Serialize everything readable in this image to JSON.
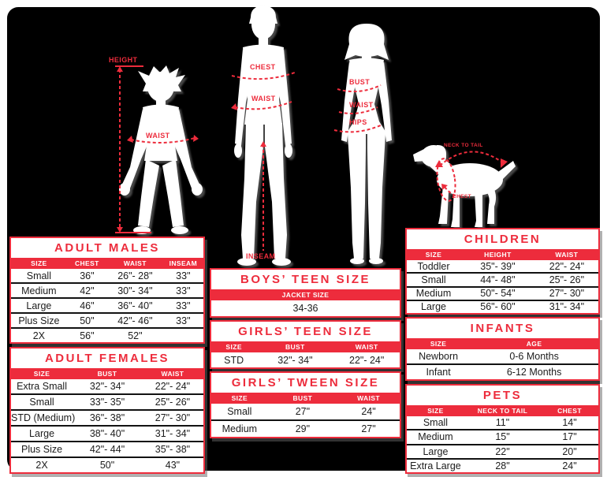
{
  "colors": {
    "accent_red": "#ed2c3c",
    "panel_black": "#000000",
    "table_bg": "#ffffff"
  },
  "figures": {
    "child": {
      "labels": {
        "height": "HEIGHT",
        "waist": "WAIST"
      }
    },
    "man": {
      "labels": {
        "chest": "CHEST",
        "waist": "WAIST",
        "inseam": "INSEAM"
      }
    },
    "woman": {
      "labels": {
        "bust": "BUST",
        "waist": "WAIST",
        "hips": "HIPS"
      }
    },
    "dog": {
      "labels": {
        "neck_to_tail": "NECK TO TAIL",
        "chest": "CHEST"
      }
    }
  },
  "tables": [
    {
      "id": "adult-males",
      "title": "ADULT MALES",
      "columns": [
        "SIZE",
        "CHEST",
        "WAIST",
        "INSEAM"
      ],
      "rows": [
        [
          "Small",
          "36\"",
          "26\"- 28\"",
          "33\""
        ],
        [
          "Medium",
          "42\"",
          "30\"- 34\"",
          "33\""
        ],
        [
          "Large",
          "46\"",
          "36\"- 40\"",
          "33\""
        ],
        [
          "Plus Size",
          "50\"",
          "42\"- 46\"",
          "33\""
        ],
        [
          "2X",
          "56\"",
          "52\"",
          ""
        ]
      ]
    },
    {
      "id": "adult-females",
      "title": "ADULT FEMALES",
      "columns": [
        "SIZE",
        "BUST",
        "WAIST"
      ],
      "rows": [
        [
          "Extra Small",
          "32\"- 34\"",
          "22\"- 24\""
        ],
        [
          "Small",
          "33\"- 35\"",
          "25\"- 26\""
        ],
        [
          "STD (Medium)",
          "36\"- 38\"",
          "27\"- 30\""
        ],
        [
          "Large",
          "38\"- 40\"",
          "31\"- 34\""
        ],
        [
          "Plus Size",
          "42\"- 44\"",
          "35\"- 38\""
        ],
        [
          "2X",
          "50\"",
          "43\""
        ]
      ]
    },
    {
      "id": "boys-teen",
      "title": "BOYS’ TEEN SIZE",
      "columns": [
        "JACKET SIZE"
      ],
      "rows": [
        [
          "34-36"
        ]
      ]
    },
    {
      "id": "girls-teen",
      "title": "GIRLS’ TEEN SIZE",
      "columns": [
        "SIZE",
        "BUST",
        "WAIST"
      ],
      "rows": [
        [
          "STD",
          "32\"- 34\"",
          "22\"- 24\""
        ]
      ]
    },
    {
      "id": "girls-tween",
      "title": "GIRLS’ TWEEN SIZE",
      "columns": [
        "SIZE",
        "BUST",
        "WAIST"
      ],
      "rows": [
        [
          "Small",
          "27\"",
          "24\""
        ],
        [
          "Medium",
          "29\"",
          "27\""
        ]
      ]
    },
    {
      "id": "children",
      "title": "CHILDREN",
      "columns": [
        "SIZE",
        "HEIGHT",
        "WAIST"
      ],
      "rows": [
        [
          "Toddler",
          "35\"- 39\"",
          "22\"- 24\""
        ],
        [
          "Small",
          "44\"- 48\"",
          "25\"- 26\""
        ],
        [
          "Medium",
          "50\"- 54\"",
          "27\"- 30\""
        ],
        [
          "Large",
          "56\"- 60\"",
          "31\"- 34\""
        ]
      ]
    },
    {
      "id": "infants",
      "title": "INFANTS",
      "columns": [
        "SIZE",
        "AGE"
      ],
      "rows": [
        [
          "Newborn",
          "0-6 Months"
        ],
        [
          "Infant",
          "6-12 Months"
        ]
      ]
    },
    {
      "id": "pets",
      "title": "PETS",
      "columns": [
        "SIZE",
        "NECK TO TAIL",
        "CHEST"
      ],
      "rows": [
        [
          "Small",
          "11\"",
          "14\""
        ],
        [
          "Medium",
          "15\"",
          "17\""
        ],
        [
          "Large",
          "22\"",
          "20\""
        ],
        [
          "Extra Large",
          "28\"",
          "24\""
        ]
      ]
    }
  ]
}
